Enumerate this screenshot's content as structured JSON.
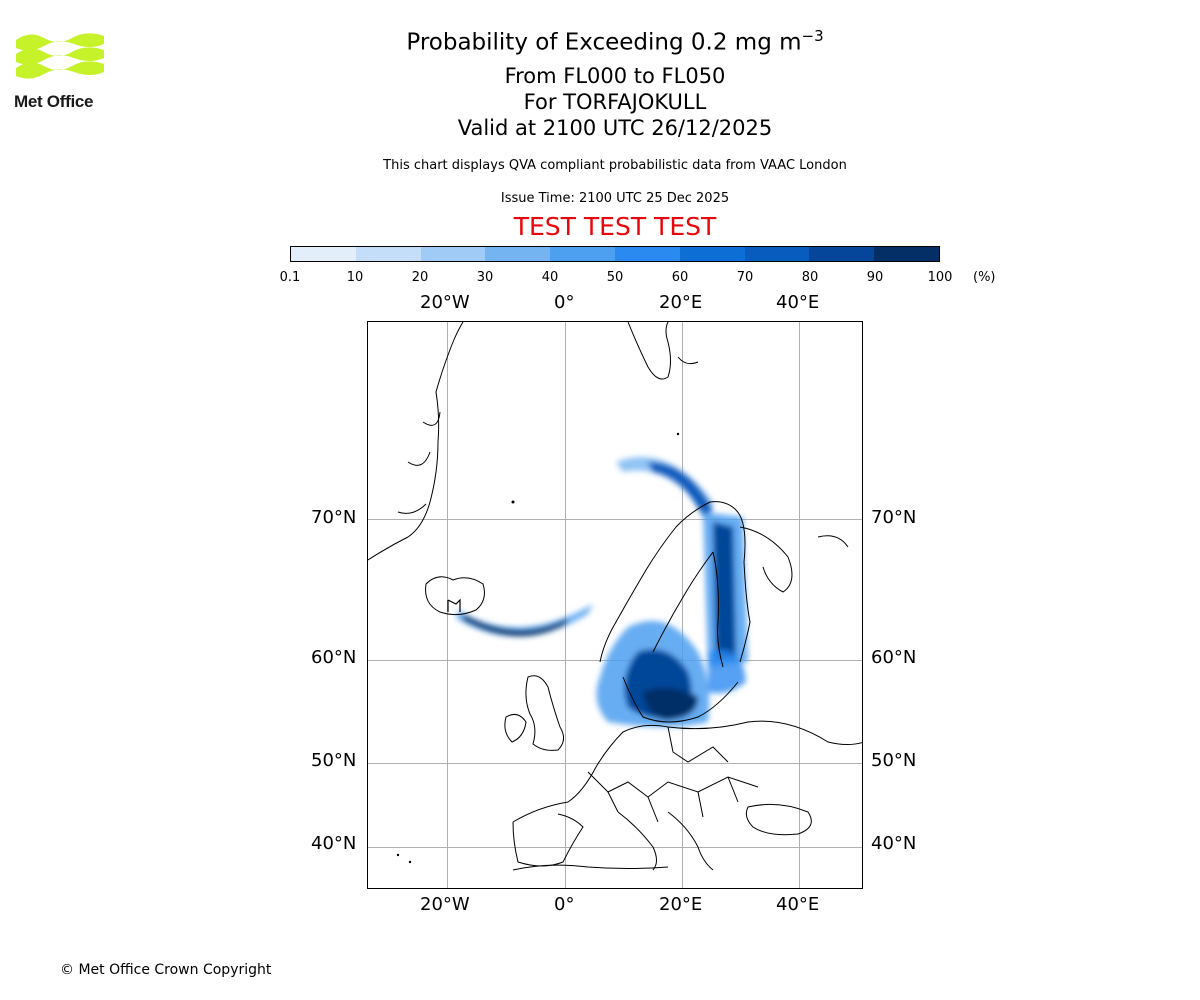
{
  "logo": {
    "text": "Met Office"
  },
  "title": {
    "line1": "Probability of Exceeding 0.2 mg m",
    "line1_sup": "−3",
    "line2": "From FL000 to FL050",
    "line3": "For TORFAJOKULL",
    "line4": "Valid at 2100 UTC 26/12/2025"
  },
  "note": "This chart displays QVA compliant probabilistic data from VAAC London",
  "issue_time": "Issue Time: 2100 UTC 25 Dec 2025",
  "test_banner": "TEST TEST TEST",
  "colorbar": {
    "ticks": [
      "0.1",
      "10",
      "20",
      "30",
      "40",
      "50",
      "60",
      "70",
      "80",
      "90",
      "100"
    ],
    "unit": "(%)",
    "colors": [
      "#e3eefb",
      "#c4defa",
      "#9fcbf6",
      "#74b4f1",
      "#4d9ff0",
      "#2b8af0",
      "#0d6fd6",
      "#075cbd",
      "#06469a",
      "#032e66"
    ]
  },
  "axes": {
    "lon_labels": [
      "20°W",
      "0°",
      "20°E",
      "40°E"
    ],
    "lat_labels": [
      "70°N",
      "60°N",
      "50°N",
      "40°N"
    ]
  },
  "copyright": "© Met Office Crown Copyright"
}
